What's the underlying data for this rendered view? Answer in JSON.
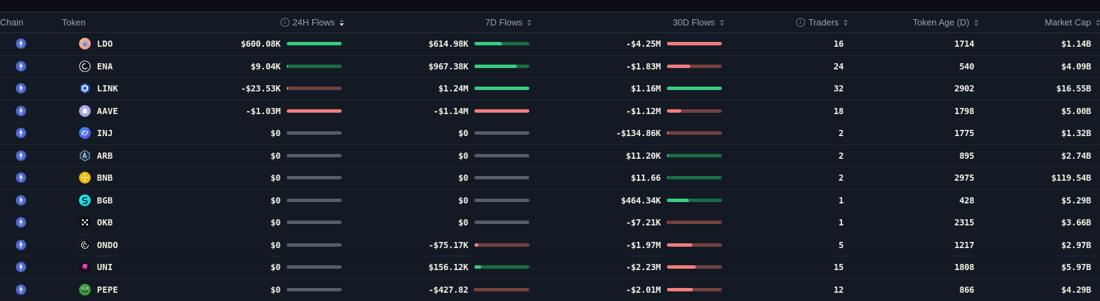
{
  "columns": [
    {
      "id": "chain",
      "label": "Chain",
      "align": "left",
      "has_info": false,
      "sortable": false,
      "active_sort": null
    },
    {
      "id": "token",
      "label": "Token",
      "align": "left",
      "has_info": false,
      "sortable": false,
      "active_sort": null
    },
    {
      "id": "flow24h",
      "label": "24H Flows",
      "align": "right",
      "has_info": true,
      "sortable": true,
      "active_sort": "desc"
    },
    {
      "id": "flow7d",
      "label": "7D Flows",
      "align": "right",
      "has_info": false,
      "sortable": true,
      "active_sort": null
    },
    {
      "id": "flow30d",
      "label": "30D Flows",
      "align": "right",
      "has_info": false,
      "sortable": true,
      "active_sort": null
    },
    {
      "id": "traders",
      "label": "Traders",
      "align": "right",
      "has_info": true,
      "sortable": true,
      "active_sort": null
    },
    {
      "id": "age",
      "label": "Token Age (D)",
      "align": "right",
      "has_info": false,
      "sortable": true,
      "active_sort": null
    },
    {
      "id": "mcap",
      "label": "Market Cap",
      "align": "right",
      "has_info": false,
      "sortable": true,
      "active_sort": null
    }
  ],
  "rows": [
    {
      "chain": "Ethereum",
      "symbol": "LDO",
      "icon": "ldo",
      "flow24h": {
        "label": "$600.08K",
        "dir": "pos",
        "fill": 100
      },
      "flow7d": {
        "label": "$614.98K",
        "dir": "pos",
        "fill": 50
      },
      "flow30d": {
        "label": "-$4.25M",
        "dir": "neg",
        "fill": 100
      },
      "traders": "16",
      "age": "1714",
      "mcap": "$1.14B"
    },
    {
      "chain": "Ethereum",
      "symbol": "ENA",
      "icon": "ena",
      "flow24h": {
        "label": "$9.04K",
        "dir": "pos",
        "fill": 2
      },
      "flow7d": {
        "label": "$967.38K",
        "dir": "pos",
        "fill": 78
      },
      "flow30d": {
        "label": "-$1.83M",
        "dir": "neg",
        "fill": 43
      },
      "traders": "24",
      "age": "540",
      "mcap": "$4.09B"
    },
    {
      "chain": "Ethereum",
      "symbol": "LINK",
      "icon": "link",
      "flow24h": {
        "label": "-$23.53K",
        "dir": "neg",
        "fill": 3
      },
      "flow7d": {
        "label": "$1.24M",
        "dir": "pos",
        "fill": 100
      },
      "flow30d": {
        "label": "$1.16M",
        "dir": "pos",
        "fill": 100
      },
      "traders": "32",
      "age": "2902",
      "mcap": "$16.55B"
    },
    {
      "chain": "Ethereum",
      "symbol": "AAVE",
      "icon": "aave",
      "flow24h": {
        "label": "-$1.03M",
        "dir": "neg",
        "fill": 100
      },
      "flow7d": {
        "label": "-$1.14M",
        "dir": "neg",
        "fill": 100
      },
      "flow30d": {
        "label": "-$1.12M",
        "dir": "neg",
        "fill": 26
      },
      "traders": "18",
      "age": "1798",
      "mcap": "$5.00B"
    },
    {
      "chain": "Ethereum",
      "symbol": "INJ",
      "icon": "inj",
      "flow24h": {
        "label": "$0",
        "dir": "zero",
        "fill": 0
      },
      "flow7d": {
        "label": "$0",
        "dir": "zero",
        "fill": 0
      },
      "flow30d": {
        "label": "-$134.86K",
        "dir": "neg",
        "fill": 3
      },
      "traders": "2",
      "age": "1775",
      "mcap": "$1.32B"
    },
    {
      "chain": "Ethereum",
      "symbol": "ARB",
      "icon": "arb",
      "flow24h": {
        "label": "$0",
        "dir": "zero",
        "fill": 0
      },
      "flow7d": {
        "label": "$0",
        "dir": "zero",
        "fill": 0
      },
      "flow30d": {
        "label": "$11.20K",
        "dir": "pos",
        "fill": 2
      },
      "traders": "2",
      "age": "895",
      "mcap": "$2.74B"
    },
    {
      "chain": "Ethereum",
      "symbol": "BNB",
      "icon": "bnb",
      "flow24h": {
        "label": "$0",
        "dir": "zero",
        "fill": 0
      },
      "flow7d": {
        "label": "$0",
        "dir": "zero",
        "fill": 0
      },
      "flow30d": {
        "label": "$11.66",
        "dir": "pos",
        "fill": 1
      },
      "traders": "2",
      "age": "2975",
      "mcap": "$119.54B"
    },
    {
      "chain": "Ethereum",
      "symbol": "BGB",
      "icon": "bgb",
      "flow24h": {
        "label": "$0",
        "dir": "zero",
        "fill": 0
      },
      "flow7d": {
        "label": "$0",
        "dir": "zero",
        "fill": 0
      },
      "flow30d": {
        "label": "$464.34K",
        "dir": "pos",
        "fill": 40
      },
      "traders": "1",
      "age": "428",
      "mcap": "$5.29B"
    },
    {
      "chain": "Ethereum",
      "symbol": "OKB",
      "icon": "okb",
      "flow24h": {
        "label": "$0",
        "dir": "zero",
        "fill": 0
      },
      "flow7d": {
        "label": "$0",
        "dir": "zero",
        "fill": 0
      },
      "flow30d": {
        "label": "-$7.21K",
        "dir": "neg",
        "fill": 1
      },
      "traders": "1",
      "age": "2315",
      "mcap": "$3.66B"
    },
    {
      "chain": "Ethereum",
      "symbol": "ONDO",
      "icon": "ondo",
      "flow24h": {
        "label": "$0",
        "dir": "zero",
        "fill": 0
      },
      "flow7d": {
        "label": "-$75.17K",
        "dir": "neg",
        "fill": 7
      },
      "flow30d": {
        "label": "-$1.97M",
        "dir": "neg",
        "fill": 46
      },
      "traders": "5",
      "age": "1217",
      "mcap": "$2.97B"
    },
    {
      "chain": "Ethereum",
      "symbol": "UNI",
      "icon": "uni",
      "flow24h": {
        "label": "$0",
        "dir": "zero",
        "fill": 0
      },
      "flow7d": {
        "label": "$156.12K",
        "dir": "pos",
        "fill": 13
      },
      "flow30d": {
        "label": "-$2.23M",
        "dir": "neg",
        "fill": 52
      },
      "traders": "15",
      "age": "1808",
      "mcap": "$5.97B"
    },
    {
      "chain": "Ethereum",
      "symbol": "PEPE",
      "icon": "pepe",
      "flow24h": {
        "label": "$0",
        "dir": "zero",
        "fill": 0
      },
      "flow7d": {
        "label": "-$427.82",
        "dir": "neg",
        "fill": 1
      },
      "flow30d": {
        "label": "-$2.01M",
        "dir": "neg",
        "fill": 47
      },
      "traders": "12",
      "age": "866",
      "mcap": "$4.29B"
    }
  ],
  "colors": {
    "flow_positive": "#3bcb82",
    "flow_positive_track": "#1d6b45",
    "flow_negative": "#f07d7d",
    "flow_negative_track": "#744040",
    "flow_zero_track": "#565d69",
    "chain_badge": "#5066cf"
  }
}
